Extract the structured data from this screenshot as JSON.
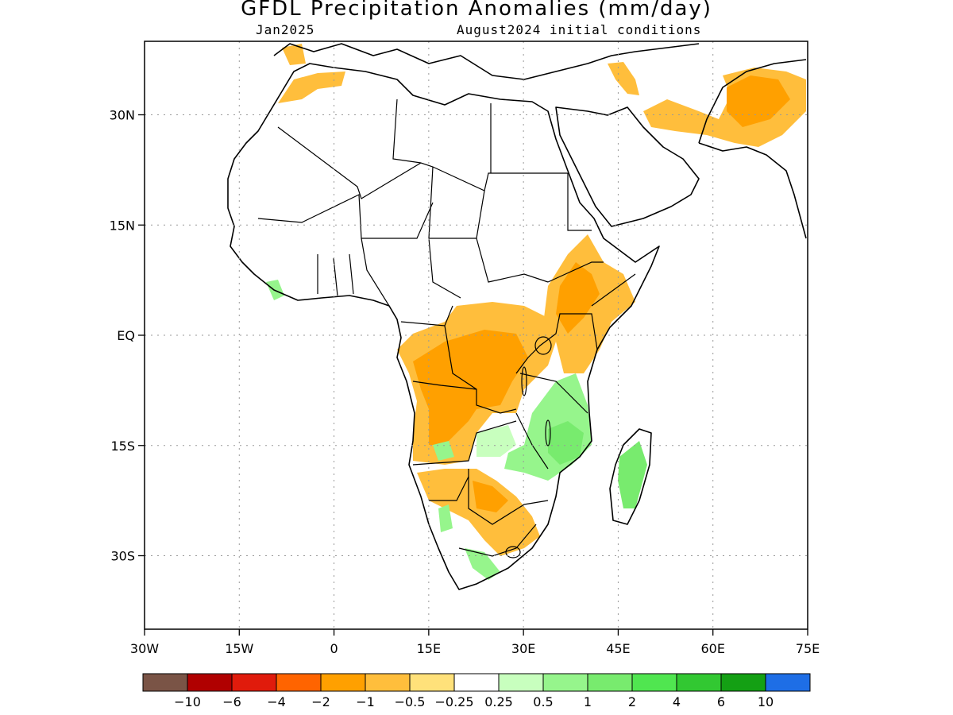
{
  "map": {
    "title": "GFDL Precipitation Anomalies (mm/day)",
    "subtitle_left": "Jan2025",
    "subtitle_right": "August2024 initial conditions",
    "lon_range": [
      -30,
      75
    ],
    "lat_range": [
      -40,
      40
    ],
    "lon_ticks": [
      "30W",
      "15W",
      "0",
      "15E",
      "30E",
      "45E",
      "60E",
      "75E"
    ],
    "lat_ticks": [
      "30N",
      "15N",
      "EQ",
      "15S",
      "30S"
    ],
    "grid": "dotted"
  },
  "legend": {
    "colors": [
      "#7a5446",
      "#b00000",
      "#e01b0c",
      "#ff6400",
      "#ffa000",
      "#ffbe3c",
      "#ffe17a",
      "#ffffff",
      "#c8ffbe",
      "#96f58c",
      "#78eb6e",
      "#50e650",
      "#32c832",
      "#14a014",
      "#1e6ee6"
    ],
    "labels": [
      "-10",
      "-6",
      "-4",
      "-2",
      "-1",
      "-0.5",
      "-0.25",
      "0.25",
      "0.5",
      "1",
      "2",
      "4",
      "6",
      "10"
    ]
  }
}
